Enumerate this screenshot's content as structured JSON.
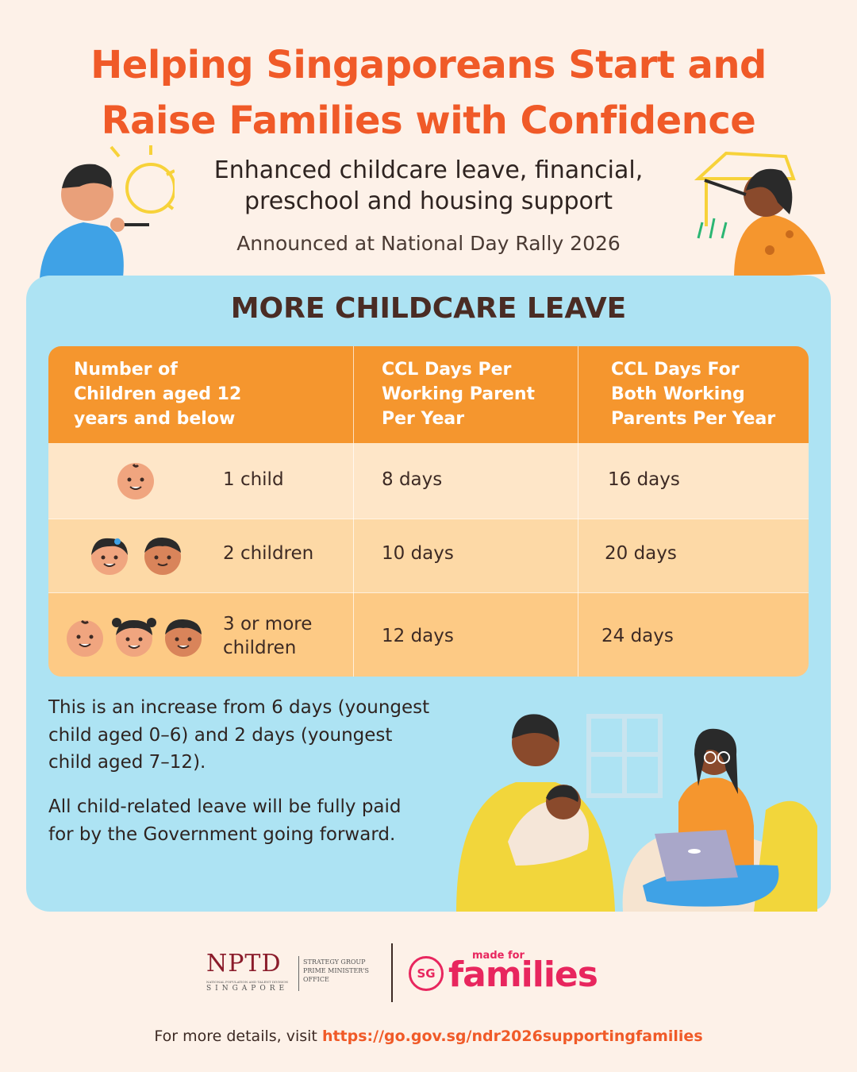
{
  "header": {
    "title": [
      "Helping Singaporeans Start and",
      "Raise Families with Confidence"
    ],
    "subtitle": [
      "Enhanced childcare leave, financial,",
      "preschool and housing support"
    ],
    "announcement": "Announced at National Day Rally 2026"
  },
  "section": {
    "title": "MORE CHILDCARE LEAVE",
    "table": {
      "headers": [
        [
          "Number of",
          "Children aged 12",
          "years and below"
        ],
        [
          "CCL Days Per",
          "Working Parent",
          "Per Year"
        ],
        [
          "CCL Days For",
          "Both Working",
          "Parents Per Year"
        ]
      ],
      "rows": [
        [
          [
            "1 child"
          ],
          "8 days",
          "16 days"
        ],
        [
          [
            "2 children"
          ],
          "10 days",
          "20 days"
        ],
        [
          [
            "3 or more",
            "children"
          ],
          "12 days",
          "24 days"
        ]
      ]
    },
    "notes": [
      [
        "This is an increase from 6 days (youngest",
        "child aged 0–6) and 2 days (youngest",
        "child aged 7–12)."
      ],
      [
        "All child-related leave will be fully paid",
        "for by the Government going forward."
      ]
    ]
  },
  "footer": {
    "nptd": {
      "name": "NPTD",
      "division": "NATIONAL POPULATION AND TALENT DIVISION",
      "country": "SINGAPORE",
      "office": [
        "STRATEGY GROUP",
        "PRIME MINISTER'S",
        "OFFICE"
      ]
    },
    "families_logo": {
      "badge": "SG",
      "tagline": "made for",
      "word": "families"
    },
    "details": {
      "prefix": "For more details, visit",
      "link": "https://go.gov.sg/ndr2026supportingfamilies"
    }
  }
}
